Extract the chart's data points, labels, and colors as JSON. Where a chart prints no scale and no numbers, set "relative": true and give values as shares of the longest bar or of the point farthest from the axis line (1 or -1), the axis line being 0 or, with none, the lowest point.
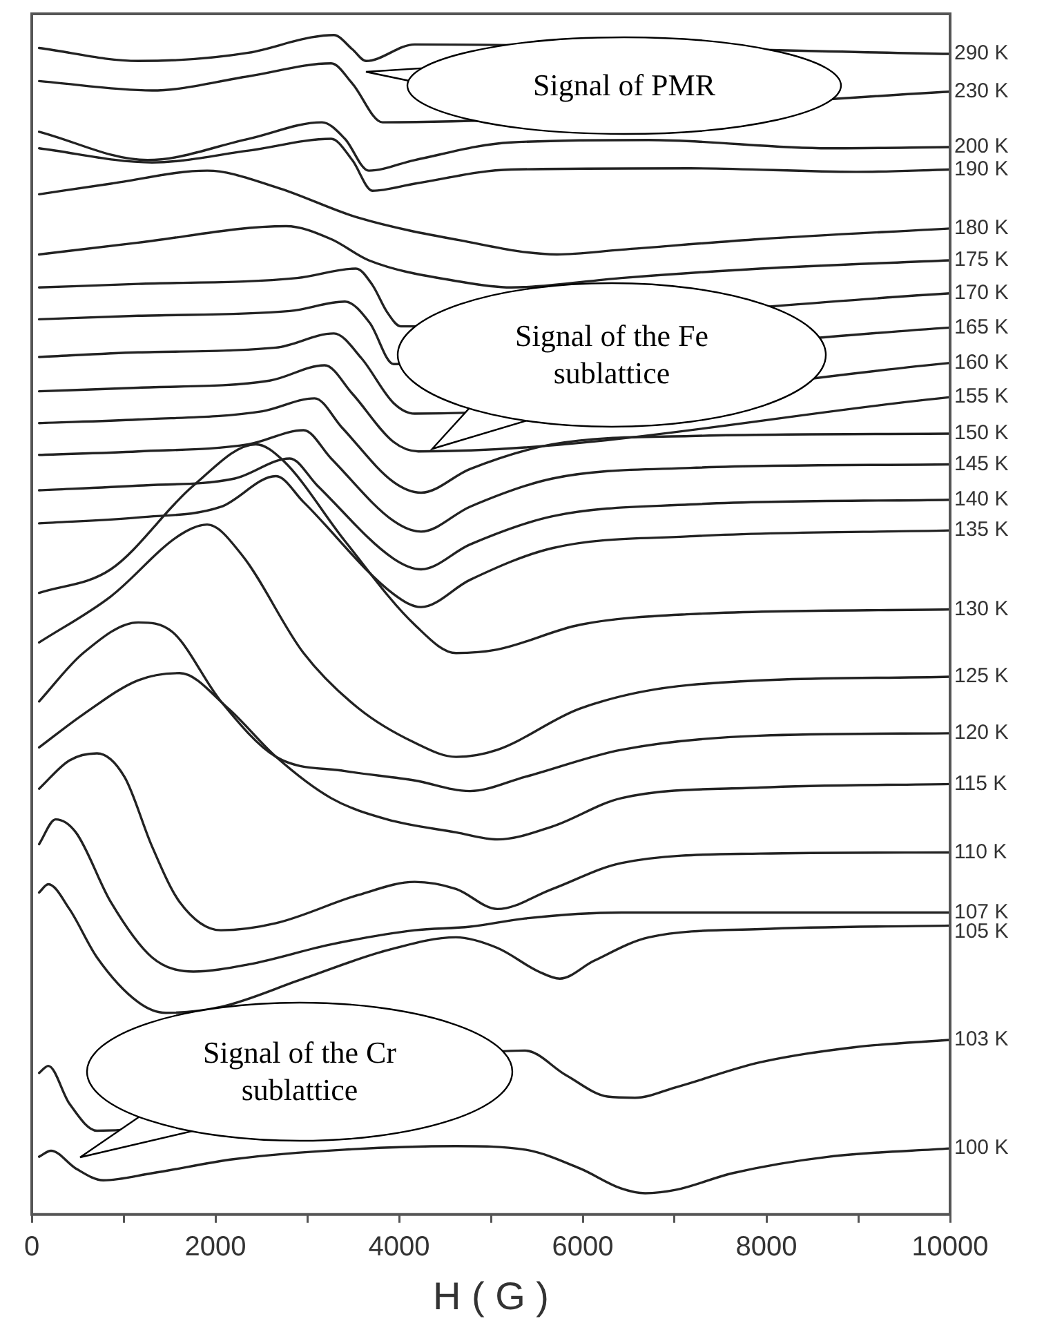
{
  "chart_data": {
    "type": "line",
    "relative": true,
    "xlabel": "H ( G )",
    "xlim": [
      0,
      10000
    ],
    "xticks": [
      0,
      {
        "value": 1000,
        "label": null
      },
      2000,
      {
        "value": 3000,
        "label": null
      },
      4000,
      {
        "value": 5000,
        "label": null
      },
      6000,
      {
        "value": 7000,
        "label": null
      },
      8000,
      {
        "value": 9000,
        "label": null
      },
      10000
    ],
    "grid": false,
    "legend": false,
    "annotations": [
      "Signal of PMR",
      "Signal of the Fe sublattice",
      "Signal of the Cr sublattice"
    ],
    "series": [
      {
        "name": "290 K",
        "color": "#222222",
        "x": [
          80,
          1160,
          2360,
          3040,
          3290,
          3490,
          3640,
          4170,
          10000
        ],
        "values": [
          0.989,
          0.978,
          0.985,
          0.998,
          1.0,
          0.988,
          0.978,
          0.992,
          0.984
        ]
      },
      {
        "name": "230 K",
        "color": "#222222",
        "x": [
          80,
          1310,
          2360,
          3260,
          3490,
          3820,
          10000
        ],
        "values": [
          0.961,
          0.953,
          0.965,
          0.976,
          0.959,
          0.926,
          0.952
        ]
      },
      {
        "name": "200 K",
        "color": "#222222",
        "x": [
          80,
          1260,
          2360,
          3160,
          3410,
          3670,
          4170,
          5220,
          6720,
          8680,
          10000
        ],
        "values": [
          0.918,
          0.894,
          0.912,
          0.926,
          0.912,
          0.885,
          0.894,
          0.909,
          0.911,
          0.904,
          0.905
        ]
      },
      {
        "name": "190 K",
        "color": "#222222",
        "x": [
          80,
          1310,
          2360,
          3260,
          3490,
          3710,
          4170,
          5220,
          7170,
          8980,
          10000
        ],
        "values": [
          0.904,
          0.892,
          0.902,
          0.912,
          0.894,
          0.868,
          0.874,
          0.886,
          0.887,
          0.884,
          0.886
        ]
      },
      {
        "name": "180 K",
        "color": "#222222",
        "x": [
          80,
          860,
          1910,
          2660,
          3560,
          4660,
          5720,
          6420,
          7930,
          10000
        ],
        "values": [
          0.865,
          0.874,
          0.885,
          0.871,
          0.845,
          0.826,
          0.814,
          0.818,
          0.827,
          0.836
        ]
      },
      {
        "name": "175 K",
        "color": "#222222",
        "x": [
          80,
          1160,
          2770,
          3260,
          3670,
          4660,
          5220,
          6420,
          7930,
          10000
        ],
        "values": [
          0.814,
          0.824,
          0.838,
          0.827,
          0.809,
          0.791,
          0.786,
          0.794,
          0.802,
          0.809
        ]
      },
      {
        "name": "170 K",
        "color": "#222222",
        "x": [
          80,
          1160,
          2890,
          3530,
          3710,
          3870,
          4020,
          10000
        ],
        "values": [
          0.786,
          0.789,
          0.794,
          0.802,
          0.788,
          0.765,
          0.753,
          0.781
        ]
      },
      {
        "name": "165 K",
        "color": "#222222",
        "x": [
          80,
          1160,
          2810,
          3410,
          3680,
          3940,
          10000
        ],
        "values": [
          0.759,
          0.762,
          0.766,
          0.774,
          0.756,
          0.721,
          0.752
        ]
      },
      {
        "name": "160 K",
        "color": "#222222",
        "x": [
          80,
          1160,
          2660,
          3290,
          3590,
          3940,
          4170,
          10000
        ],
        "values": [
          0.727,
          0.731,
          0.735,
          0.747,
          0.726,
          0.688,
          0.679,
          0.722
        ]
      },
      {
        "name": "155 K",
        "color": "#222222",
        "x": [
          80,
          1160,
          2590,
          3190,
          3490,
          3940,
          4210,
          10000
        ],
        "values": [
          0.698,
          0.701,
          0.707,
          0.72,
          0.696,
          0.655,
          0.647,
          0.693
        ]
      },
      {
        "name": "150 K",
        "color": "#222222",
        "x": [
          80,
          1160,
          2510,
          3080,
          3380,
          3940,
          4240,
          4770,
          5670,
          7170,
          10000
        ],
        "values": [
          0.671,
          0.674,
          0.681,
          0.692,
          0.667,
          0.621,
          0.612,
          0.632,
          0.653,
          0.66,
          0.662
        ]
      },
      {
        "name": "145 K",
        "color": "#222222",
        "x": [
          80,
          1160,
          2360,
          2960,
          3260,
          3940,
          4240,
          4770,
          5670,
          7170,
          10000
        ],
        "values": [
          0.644,
          0.647,
          0.653,
          0.665,
          0.641,
          0.588,
          0.579,
          0.6,
          0.624,
          0.633,
          0.636
        ]
      },
      {
        "name": "140 K",
        "color": "#222222",
        "x": [
          80,
          1160,
          2210,
          2810,
          3110,
          3940,
          4240,
          4770,
          5670,
          7170,
          10000
        ],
        "values": [
          0.614,
          0.618,
          0.624,
          0.641,
          0.618,
          0.556,
          0.547,
          0.568,
          0.592,
          0.602,
          0.606
        ]
      },
      {
        "name": "135 K",
        "color": "#222222",
        "x": [
          80,
          1160,
          2060,
          2660,
          2960,
          3940,
          4240,
          4770,
          5670,
          7170,
          10000
        ],
        "values": [
          0.586,
          0.591,
          0.6,
          0.626,
          0.604,
          0.526,
          0.515,
          0.538,
          0.565,
          0.575,
          0.58
        ]
      },
      {
        "name": "130 K",
        "color": "#222222",
        "x": [
          80,
          860,
          1760,
          2440,
          2740,
          3410,
          4170,
          4620,
          5070,
          5970,
          7170,
          10000
        ],
        "values": [
          0.527,
          0.547,
          0.618,
          0.653,
          0.639,
          0.571,
          0.5,
          0.476,
          0.479,
          0.5,
          0.509,
          0.513
        ]
      },
      {
        "name": "125 K",
        "color": "#222222",
        "x": [
          80,
          860,
          1610,
          1910,
          2290,
          2960,
          3560,
          4170,
          4620,
          5070,
          5970,
          7170,
          10000
        ],
        "values": [
          0.485,
          0.524,
          0.576,
          0.585,
          0.559,
          0.476,
          0.429,
          0.4,
          0.388,
          0.394,
          0.429,
          0.449,
          0.456
        ]
      },
      {
        "name": "120 K",
        "color": "#222222",
        "x": [
          80,
          560,
          1160,
          1530,
          2060,
          2660,
          3410,
          4170,
          4770,
          5370,
          6420,
          7930,
          10000
        ],
        "values": [
          0.435,
          0.476,
          0.502,
          0.494,
          0.435,
          0.388,
          0.376,
          0.368,
          0.359,
          0.371,
          0.394,
          0.406,
          0.408
        ]
      },
      {
        "name": "115 K",
        "color": "#222222",
        "x": [
          80,
          560,
          1160,
          1610,
          2140,
          2660,
          3260,
          3870,
          4620,
          5070,
          5670,
          6420,
          7930,
          10000
        ],
        "values": [
          0.396,
          0.424,
          0.453,
          0.459,
          0.429,
          0.388,
          0.353,
          0.335,
          0.324,
          0.318,
          0.329,
          0.353,
          0.362,
          0.365
        ]
      },
      {
        "name": "110 K",
        "color": "#222222",
        "x": [
          80,
          410,
          710,
          1010,
          1310,
          1610,
          2060,
          2660,
          3560,
          4170,
          4620,
          5070,
          5670,
          6420,
          7930,
          10000
        ],
        "values": [
          0.361,
          0.385,
          0.391,
          0.371,
          0.312,
          0.265,
          0.241,
          0.247,
          0.271,
          0.282,
          0.276,
          0.259,
          0.276,
          0.298,
          0.306,
          0.307
        ]
      },
      {
        "name": "107 K",
        "color": "#222222",
        "x": [
          80,
          260,
          480,
          860,
          1310,
          1760,
          2360,
          3260,
          4170,
          4770,
          5370,
          6420,
          10000
        ],
        "values": [
          0.314,
          0.335,
          0.324,
          0.265,
          0.218,
          0.206,
          0.212,
          0.229,
          0.241,
          0.244,
          0.251,
          0.256,
          0.256
        ]
      },
      {
        "name": "105 K",
        "color": "#222222",
        "x": [
          80,
          180,
          410,
          710,
          1160,
          1460,
          2060,
          2960,
          3870,
          4620,
          5070,
          5520,
          5750,
          6120,
          6720,
          7930,
          10000
        ],
        "values": [
          0.273,
          0.28,
          0.259,
          0.218,
          0.18,
          0.171,
          0.176,
          0.2,
          0.224,
          0.235,
          0.226,
          0.206,
          0.2,
          0.215,
          0.235,
          0.242,
          0.245
        ]
      },
      {
        "name": "103 K",
        "color": "#222222",
        "x": [
          80,
          180,
          410,
          710,
          5370,
          5820,
          6270,
          6570,
          7020,
          7930,
          8980,
          10000
        ],
        "values": [
          0.12,
          0.126,
          0.094,
          0.071,
          0.139,
          0.118,
          0.1,
          0.099,
          0.108,
          0.129,
          0.142,
          0.148
        ]
      },
      {
        "name": "100 K",
        "color": "#222222",
        "x": [
          80,
          210,
          480,
          780,
          1310,
          2210,
          3410,
          4620,
          5370,
          5970,
          6420,
          6680,
          7020,
          7630,
          8680,
          10000
        ],
        "values": [
          0.049,
          0.054,
          0.039,
          0.029,
          0.035,
          0.047,
          0.055,
          0.058,
          0.055,
          0.039,
          0.022,
          0.018,
          0.021,
          0.035,
          0.049,
          0.056
        ]
      }
    ]
  }
}
